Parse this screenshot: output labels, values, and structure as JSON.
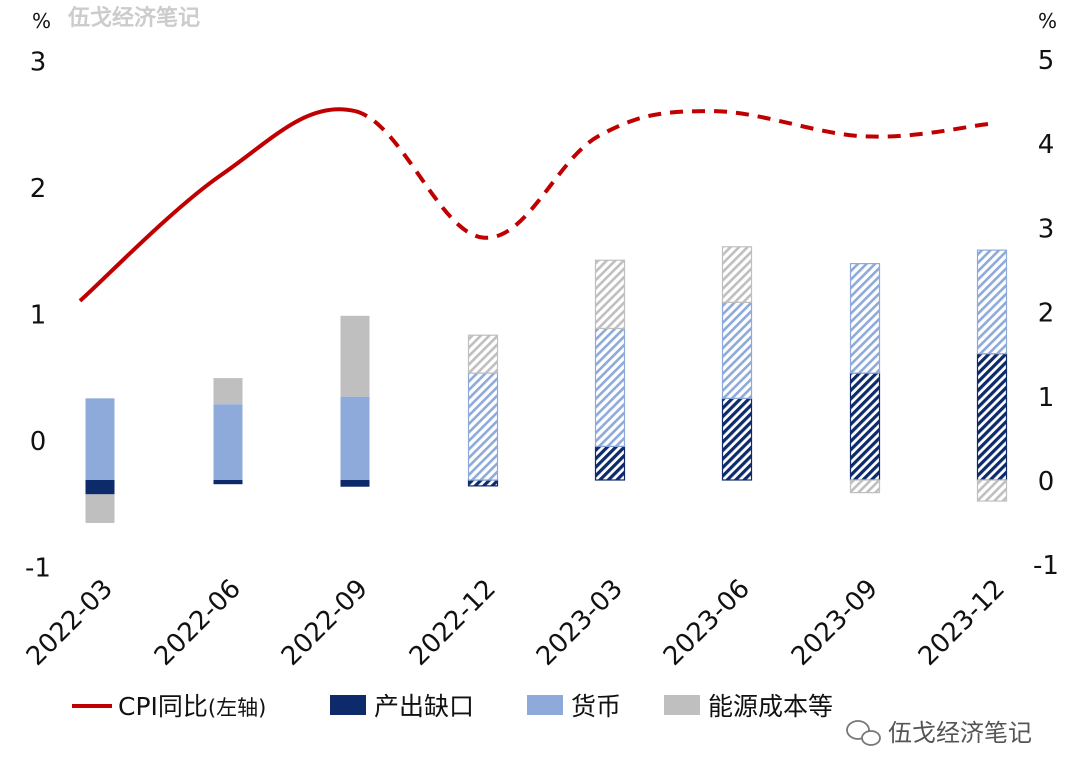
{
  "watermark": "伍戈经济笔记",
  "chart_data": {
    "type": "bar",
    "categories": [
      "2022-03",
      "2022-06",
      "2022-09",
      "2022-12",
      "2023-03",
      "2023-06",
      "2023-09",
      "2023-12"
    ],
    "left_axis": {
      "unit": "%",
      "ylim": [
        -1,
        3
      ],
      "ticks": [
        "-1",
        "0",
        "1",
        "2",
        "3"
      ]
    },
    "right_axis": {
      "unit": "%",
      "ylim": [
        -1,
        5
      ],
      "ticks": [
        "-1",
        "0",
        "1",
        "2",
        "3",
        "4",
        "5"
      ]
    },
    "stacked": true,
    "forecast_from": "2022-12",
    "series": [
      {
        "name": "产出缺口",
        "kind": "bar",
        "axis": "right",
        "color": "#0d2a6b",
        "values": [
          -0.17,
          -0.05,
          -0.08,
          -0.07,
          0.4,
          0.97,
          1.27,
          1.5
        ]
      },
      {
        "name": "货币",
        "kind": "bar",
        "axis": "right",
        "color": "#8eaadb",
        "values": [
          0.97,
          0.9,
          0.99,
          1.27,
          1.4,
          1.14,
          1.3,
          1.23
        ]
      },
      {
        "name": "能源成本等",
        "kind": "bar",
        "axis": "right",
        "color": "#bfbfbf",
        "values": [
          -0.34,
          0.31,
          0.96,
          0.45,
          0.81,
          0.66,
          -0.15,
          -0.25
        ]
      },
      {
        "name": "CPI同比(左轴)",
        "kind": "line",
        "axis": "left",
        "color": "#c00000",
        "values": [
          1.1,
          2.1,
          2.6,
          1.6,
          2.4,
          2.6,
          2.4,
          2.5
        ]
      }
    ],
    "legend": {
      "position": "bottom",
      "items": [
        {
          "label": "CPI同比",
          "suffix": "(左轴)",
          "symbol": "line",
          "color": "#c00000"
        },
        {
          "label": "产出缺口",
          "symbol": "box",
          "color": "#0d2a6b"
        },
        {
          "label": "货币",
          "symbol": "box",
          "color": "#8eaadb"
        },
        {
          "label": "能源成本等",
          "symbol": "box",
          "color": "#bfbfbf"
        }
      ]
    }
  }
}
